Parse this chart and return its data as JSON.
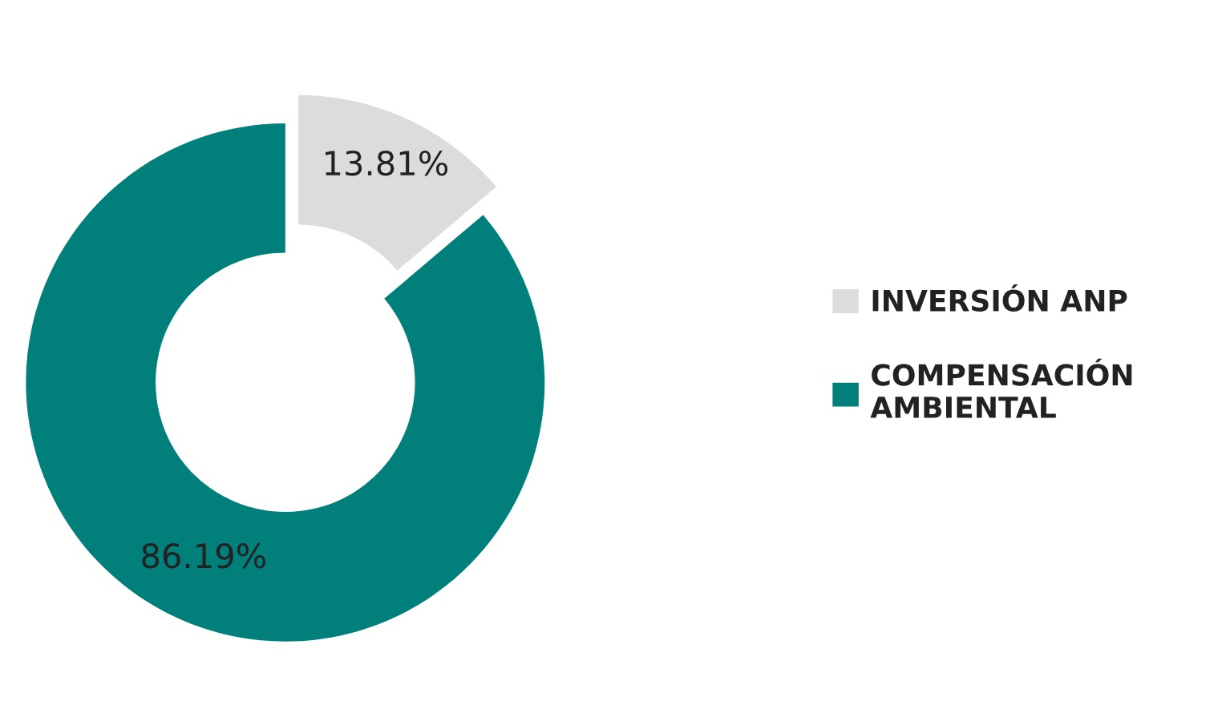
{
  "chart_data": {
    "type": "donut",
    "categories": [
      "INVERSIÓN ANP",
      "COMPENSACIÓN AMBIENTAL"
    ],
    "values": [
      13.81,
      86.19
    ],
    "colors": [
      "#dcdcdc",
      "#007f7b"
    ],
    "value_labels": [
      "13.81%",
      "86.19%"
    ],
    "legend": "right"
  }
}
